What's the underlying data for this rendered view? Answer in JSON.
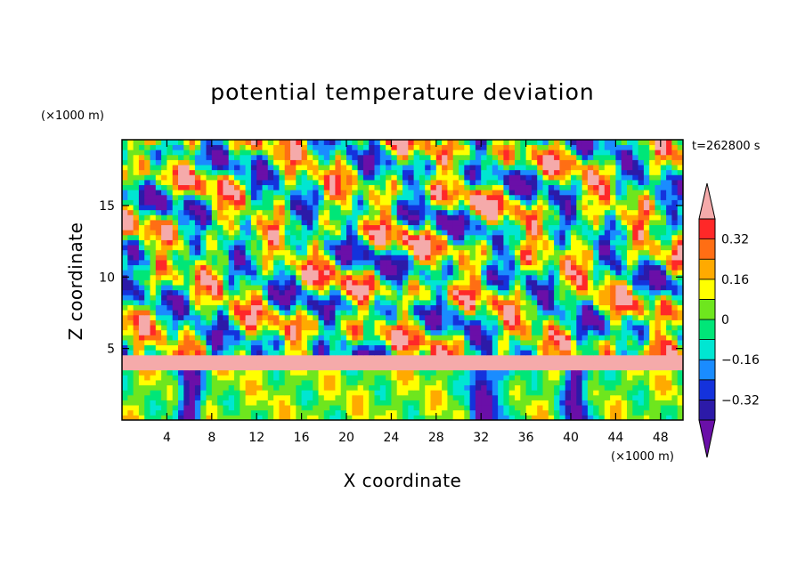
{
  "chart_data": {
    "type": "heatmap",
    "title": "potential temperature deviation",
    "xlabel": "X coordinate",
    "ylabel": "Z coordinate",
    "x_unit": "(×1000 m)",
    "y_unit": "(×1000 m)",
    "time_label": "t=262800 s",
    "xlim": [
      0,
      50
    ],
    "ylim": [
      0,
      19.6
    ],
    "x_ticks": [
      4,
      8,
      12,
      16,
      20,
      24,
      28,
      32,
      36,
      40,
      44,
      48
    ],
    "y_ticks": [
      5,
      10,
      15
    ],
    "colorbar": {
      "levels": [
        -0.4,
        -0.32,
        -0.24,
        -0.16,
        -0.08,
        0,
        0.08,
        0.16,
        0.24,
        0.32,
        0.4
      ],
      "tick_labels": [
        "0.32",
        "0.16",
        "0",
        "−0.16",
        "−0.32"
      ],
      "tick_values": [
        0.32,
        0.16,
        0,
        -0.16,
        -0.32
      ],
      "colors": [
        "#6a0fa8",
        "#2c1aa8",
        "#1432dc",
        "#1a8cff",
        "#00e6d2",
        "#00e678",
        "#6ee61e",
        "#ffff00",
        "#ffaa00",
        "#ff6e14",
        "#ff2828",
        "#f5aaaa"
      ],
      "extend": "both"
    }
  }
}
